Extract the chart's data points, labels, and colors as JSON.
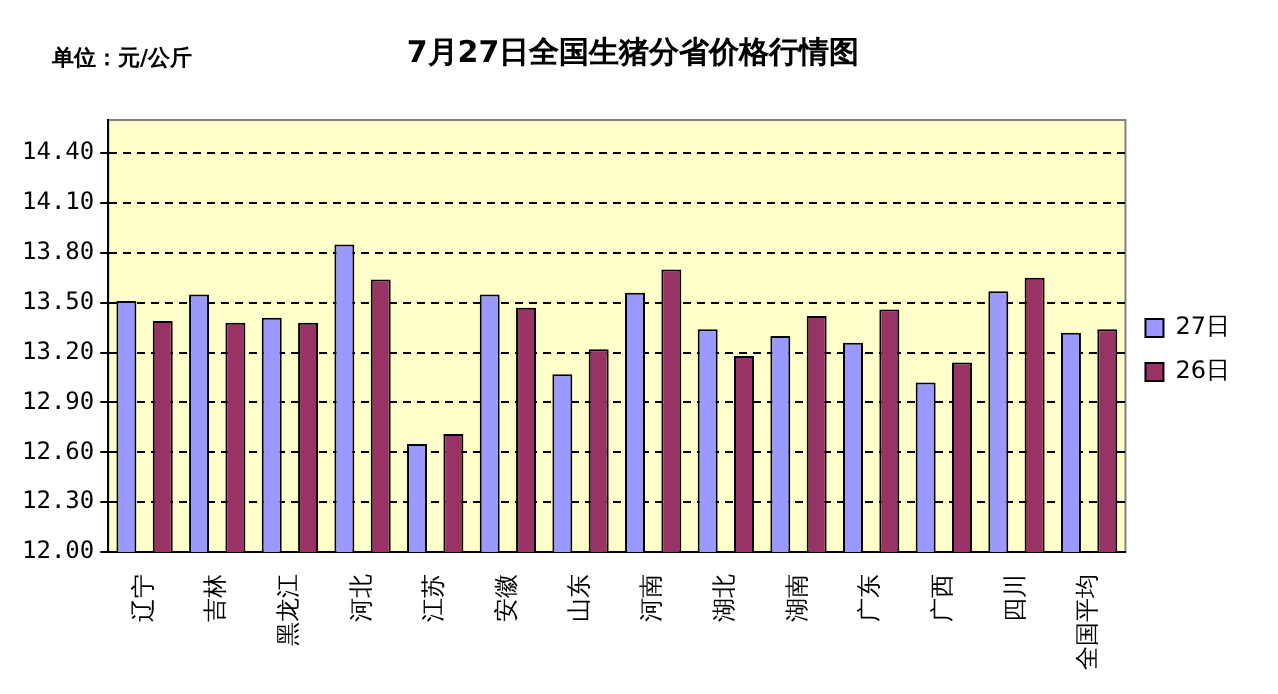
{
  "chart_data": {
    "type": "bar",
    "title": "7月27日全国生猪分省价格行情图",
    "annotations": [
      "单位：元/公斤"
    ],
    "categories": [
      "辽宁",
      "吉林",
      "黑龙江",
      "河北",
      "江苏",
      "安徽",
      "山东",
      "河南",
      "湖北",
      "湖南",
      "广东",
      "广西",
      "四川",
      "全国平均"
    ],
    "series": [
      {
        "name": "27日",
        "color": "#9999ff",
        "values": [
          13.51,
          13.55,
          13.41,
          13.85,
          12.65,
          13.55,
          13.07,
          13.56,
          13.34,
          13.3,
          13.26,
          13.02,
          13.57,
          13.32
        ]
      },
      {
        "name": "26日",
        "color": "#993366",
        "values": [
          13.39,
          13.38,
          13.38,
          13.64,
          12.71,
          13.47,
          13.22,
          13.7,
          13.18,
          13.42,
          13.46,
          13.14,
          13.65,
          13.34
        ]
      }
    ],
    "ylim": [
      12.0,
      14.6
    ],
    "yticks": [
      {
        "value": 12.0,
        "label": "12.00"
      },
      {
        "value": 12.3,
        "label": "12.30"
      },
      {
        "value": 12.6,
        "label": "12.60"
      },
      {
        "value": 12.9,
        "label": "12.90"
      },
      {
        "value": 13.2,
        "label": "13.20"
      },
      {
        "value": 13.5,
        "label": "13.50"
      },
      {
        "value": 13.8,
        "label": "13.80"
      },
      {
        "value": 14.1,
        "label": "14.10"
      },
      {
        "value": 14.4,
        "label": "14.40"
      }
    ],
    "grid": "y",
    "legend": "right"
  }
}
